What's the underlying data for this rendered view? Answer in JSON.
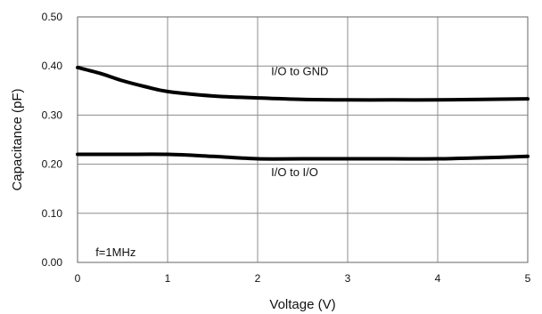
{
  "chart_data": {
    "type": "line",
    "title": "",
    "xlabel": "Voltage (V)",
    "ylabel": "Capacitance (pF)",
    "xlim": [
      0,
      5
    ],
    "ylim": [
      0,
      0.5
    ],
    "x_ticks": [
      "0",
      "1",
      "2",
      "3",
      "4",
      "5"
    ],
    "y_ticks": [
      "0.00",
      "0.10",
      "0.20",
      "0.30",
      "0.40",
      "0.50"
    ],
    "grid": true,
    "legend": "none",
    "annotation": "f=1MHz",
    "series": [
      {
        "name": "I/O to GND",
        "x": [
          0,
          0.25,
          0.5,
          0.75,
          1,
          1.5,
          2,
          2.5,
          3,
          3.5,
          4,
          4.5,
          5
        ],
        "y": [
          0.397,
          0.385,
          0.37,
          0.358,
          0.348,
          0.339,
          0.335,
          0.332,
          0.331,
          0.331,
          0.331,
          0.332,
          0.333
        ]
      },
      {
        "name": "I/O to I/O",
        "x": [
          0,
          0.5,
          1,
          1.5,
          2,
          2.5,
          3,
          3.5,
          4,
          4.5,
          5
        ],
        "y": [
          0.22,
          0.22,
          0.22,
          0.216,
          0.211,
          0.211,
          0.211,
          0.211,
          0.211,
          0.213,
          0.216
        ]
      }
    ]
  }
}
